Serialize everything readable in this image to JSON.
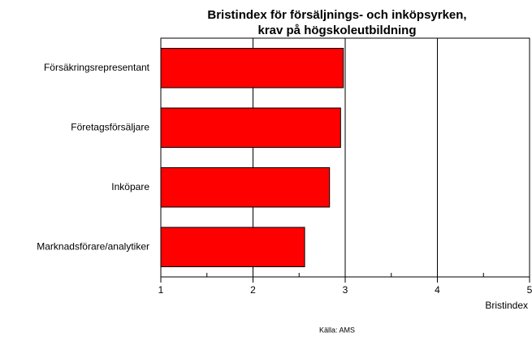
{
  "chart_data": {
    "type": "barh",
    "title": [
      "Bristindex för försäljnings- och inköpsyrken,",
      "krav på högskoleutbildning"
    ],
    "categories": [
      "Försäkringsrepresentant",
      "Företagsförsäljare",
      "Inköpare",
      "Marknadsförare/analytiker"
    ],
    "values": [
      2.98,
      2.95,
      2.83,
      2.56
    ],
    "color": "#ff0000",
    "xlim": [
      1,
      5
    ],
    "xticks": [
      1,
      2,
      3,
      4,
      5
    ],
    "xminorticks": [
      1.5,
      2.5,
      3.5,
      4.5
    ],
    "grid": true,
    "xlabel": "Bristindex",
    "source": "Källa: AMS"
  }
}
